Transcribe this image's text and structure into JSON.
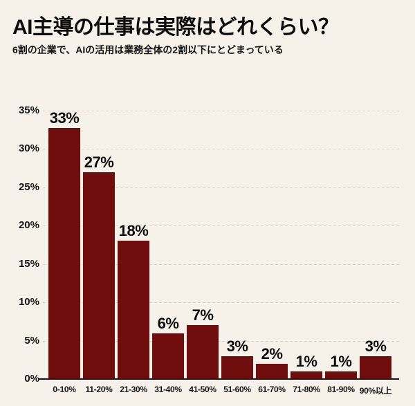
{
  "page": {
    "background_color": "#F7F2E9"
  },
  "header": {
    "title": "AI主導の仕事は実際はどれくらい？",
    "subtitle": "6割の企業で、AIの活用は業務全体の2割以下にとどまっている"
  },
  "chart_data": {
    "type": "bar",
    "title": "AI主導の仕事は実際はどれくらい？",
    "subtitle": "6割の企業で、AIの活用は業務全体の2割以下にとどまっている",
    "categories": [
      "0-10%",
      "11-20%",
      "21-30%",
      "31-40%",
      "41-50%",
      "51-60%",
      "61-70%",
      "71-80%",
      "81-90%",
      "90%以上"
    ],
    "values": [
      33,
      27,
      18,
      6,
      7,
      3,
      2,
      1,
      1,
      3
    ],
    "value_labels": [
      "33%",
      "27%",
      "18%",
      "6%",
      "7%",
      "3%",
      "2%",
      "1%",
      "1%",
      "3%"
    ],
    "xlabel": "",
    "ylabel": "",
    "ylim": [
      0,
      35
    ],
    "yticks": [
      0,
      5,
      10,
      15,
      20,
      25,
      30,
      35
    ],
    "ytick_labels": [
      "0%",
      "5%",
      "10%",
      "15%",
      "20%",
      "25%",
      "30%",
      "35%"
    ],
    "grid": "horizontal-dashed",
    "legend": "none",
    "bar_color": "#700D0D",
    "label_color": "#0D0D0D",
    "gridline_color": "#DCD5C8",
    "axis_color": "#161616"
  }
}
